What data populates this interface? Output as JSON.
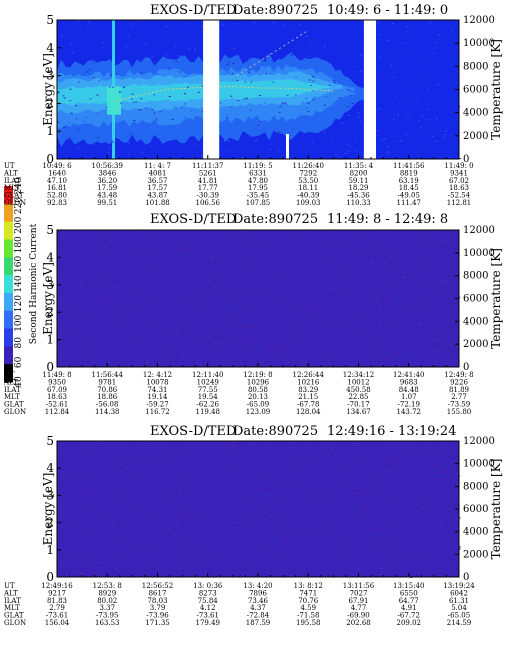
{
  "chart_data": [
    {
      "type": "heatmap",
      "title": "EXOS-D/TED",
      "date_label": "Date:890725",
      "time_range": "10:49: 6 - 11:49: 0",
      "ylabel": "Energy [eV]",
      "ylabel_right": "Temperature [K]",
      "ylim": [
        0,
        5
      ],
      "yticks": [
        "0",
        "1",
        "2",
        "3",
        "4",
        "5"
      ],
      "ylim_right": [
        0,
        12000
      ],
      "yticks_right": [
        "0",
        "2000",
        "4000",
        "6000",
        "8000",
        "10000",
        "12000"
      ],
      "background_color": "#1428e8",
      "peak_energy_ev": [
        2.1,
        2.3,
        2.5,
        2.55,
        2.6,
        2.6,
        2.55,
        2.55,
        2.5,
        2.45,
        0,
        0,
        0
      ],
      "data_gaps": [
        [
          11.18,
          11.22
        ],
        [
          11.58,
          11.61
        ]
      ],
      "ephemeris": {
        "UT": [
          "10:49: 6",
          "10:56:39",
          "11: 4: 7",
          "11:11:37",
          "11:19: 5",
          "11:26:40",
          "11:35: 4",
          "11:41:56",
          "11:49: 0"
        ],
        "ALT": [
          "1640",
          "3846",
          "4081",
          "5261",
          "6331",
          "7292",
          "8200",
          "8819",
          "9341"
        ],
        "ILAT": [
          "47.10",
          "36.20",
          "36.57",
          "41.81",
          "47.80",
          "53.50",
          "59.11",
          "63.19",
          "67.02"
        ],
        "MLT": [
          "16.81",
          "17.59",
          "17.57",
          "17.77",
          "17.95",
          "18.11",
          "18.29",
          "18.45",
          "18.63"
        ],
        "GLAT": [
          "52.80",
          "43.48",
          "43.87",
          "-30.39",
          "-35.45",
          "-40.39",
          "-45.36",
          "-49.05",
          "-52.54"
        ],
        "GLON": [
          "92.83",
          "99.51",
          "101.88",
          "106.56",
          "107.85",
          "109.03",
          "110.33",
          "111.47",
          "112.81"
        ]
      }
    },
    {
      "type": "heatmap",
      "title": "EXOS-D/TED",
      "date_label": "Date:890725",
      "time_range": "11:49: 8 - 12:49: 8",
      "ylabel": "Energy [eV]",
      "ylabel_right": "Temperature [K]",
      "ylim": [
        0,
        5
      ],
      "yticks": [
        "0",
        "1",
        "2",
        "3",
        "4",
        "5"
      ],
      "ylim_right": [
        0,
        12000
      ],
      "yticks_right": [
        "0",
        "2000",
        "4000",
        "6000",
        "8000",
        "10000",
        "12000"
      ],
      "background_color": "#3a22b8",
      "ephemeris": {
        "UT": [
          "11:49: 8",
          "11:56:44",
          "12: 4:12",
          "12:11:40",
          "12:19: 8",
          "12:26:44",
          "12:34:12",
          "12:41:40",
          "12:49: 8"
        ],
        "ALT": [
          "9350",
          "9781",
          "10078",
          "10249",
          "10296",
          "10216",
          "10012",
          "9683",
          "9226"
        ],
        "ILAT": [
          "67.09",
          "70.86",
          "74.31",
          "77.55",
          "80.58",
          "83.29",
          "450.58",
          "84.48",
          "81.89"
        ],
        "MLT": [
          "18.63",
          "18.86",
          "19.14",
          "19.54",
          "20.13",
          "21.15",
          "22.85",
          "1.07",
          "2.77"
        ],
        "GLAT": [
          "-52.61",
          "-56.08",
          "-59.27",
          "-62.26",
          "-65.09",
          "-67.78",
          "-70.17",
          "-72.19",
          "-73.59"
        ],
        "GLON": [
          "112.84",
          "114.38",
          "116.72",
          "119.48",
          "123.09",
          "128.04",
          "134.67",
          "143.72",
          "155.80"
        ]
      }
    },
    {
      "type": "heatmap",
      "title": "EXOS-D/TED",
      "date_label": "Date:890725",
      "time_range": "12:49:16 - 13:19:24",
      "ylabel": "Energy [eV]",
      "ylabel_right": "Temperature [K]",
      "ylim": [
        0,
        5
      ],
      "yticks": [
        "0",
        "1",
        "2",
        "3",
        "4",
        "5"
      ],
      "ylim_right": [
        0,
        12000
      ],
      "yticks_right": [
        "0",
        "2000",
        "4000",
        "6000",
        "8000",
        "10000",
        "12000"
      ],
      "background_color": "#3a22b8",
      "ephemeris": {
        "UT": [
          "12:49:16",
          "12:53: 8",
          "12:56:52",
          "13: 0:36",
          "13: 4:20",
          "13: 8:12",
          "13:11:56",
          "13:15:40",
          "13:19:24"
        ],
        "ALT": [
          "9217",
          "8929",
          "8617",
          "8273",
          "7896",
          "7471",
          "7027",
          "6550",
          "6042"
        ],
        "ILAT": [
          "81.83",
          "80.02",
          "78.03",
          "75.84",
          "73.46",
          "70.76",
          "67.91",
          "64.77",
          "61.31"
        ],
        "MLT": [
          "2.79",
          "3.37",
          "3.79",
          "4.12",
          "4.37",
          "4.59",
          "4.77",
          "4.91",
          "5.04"
        ],
        "GLAT": [
          "-73.61",
          "-73.95",
          "-73.96",
          "-73.61",
          "-72.84",
          "-71.58",
          "-69.90",
          "-67.72",
          "-65.05"
        ],
        "GLON": [
          "156.04",
          "163.53",
          "171.35",
          "179.49",
          "187.59",
          "195.58",
          "202.68",
          "209.02",
          "214.59"
        ]
      }
    }
  ],
  "colorbar": {
    "label": "Second Harmonic Current",
    "ticks": [
      "40",
      "60",
      "80",
      "100",
      "120",
      "140",
      "160",
      "180",
      "200",
      "220",
      "240"
    ],
    "colors": [
      "#000000",
      "#3a22b8",
      "#2a3ce8",
      "#2f6ef5",
      "#3fa8f6",
      "#38e0d8",
      "#38d870",
      "#66e830",
      "#d8e820",
      "#f0a020",
      "#e81818"
    ]
  }
}
